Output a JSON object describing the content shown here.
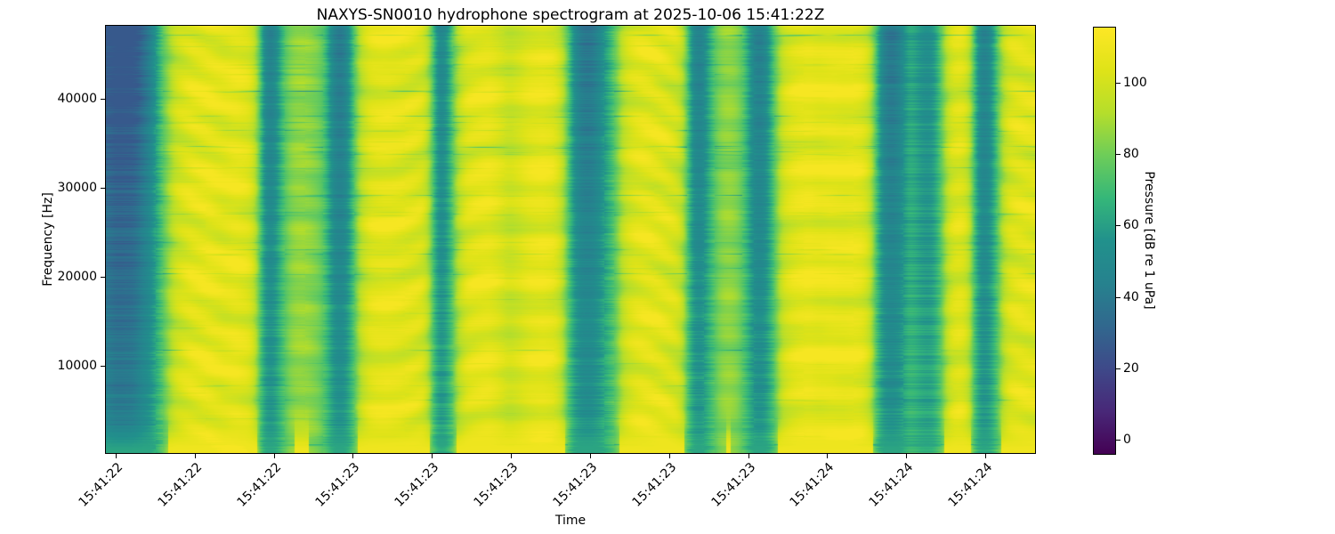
{
  "figure": {
    "title": "NAXYS-SN0010 hydrophone spectrogram at 2025-10-06 15:41:22Z",
    "background_color": "#ffffff"
  },
  "axes": {
    "xlabel": "Time",
    "ylabel": "Frequency [Hz]",
    "x_tick_labels": [
      "15:41:22",
      "15:41:22",
      "15:41:22",
      "15:41:23",
      "15:41:23",
      "15:41:23",
      "15:41:23",
      "15:41:23",
      "15:41:23",
      "15:41:24",
      "15:41:24",
      "15:41:24"
    ],
    "y_tick_labels": [
      "10000",
      "20000",
      "30000",
      "40000"
    ]
  },
  "colorbar": {
    "label": "Pressure [dB re 1 uPa]",
    "tick_values": [
      0,
      20,
      40,
      60,
      80,
      100
    ],
    "tick_labels": [
      "0",
      "20",
      "40",
      "60",
      "80",
      "100"
    ],
    "vmin": -4,
    "vmax": 115.5,
    "colormap": "viridis",
    "stops": [
      [
        0,
        "#440154"
      ],
      [
        0.1,
        "#482878"
      ],
      [
        0.2,
        "#3e4989"
      ],
      [
        0.3,
        "#31688e"
      ],
      [
        0.4,
        "#26828e"
      ],
      [
        0.5,
        "#21918c"
      ],
      [
        0.6,
        "#35b779"
      ],
      [
        0.7,
        "#6dcd59"
      ],
      [
        0.8,
        "#b5de2b"
      ],
      [
        0.9,
        "#dfe318"
      ],
      [
        1,
        "#fde725"
      ]
    ]
  },
  "chart_data": {
    "type": "heatmap",
    "subtype": "spectrogram",
    "title": "NAXYS-SN0010 hydrophone spectrogram at 2025-10-06 15:41:22Z",
    "xlabel": "Time",
    "ylabel": "Frequency [Hz]",
    "x_tick_labels": [
      "15:41:22",
      "15:41:22",
      "15:41:22",
      "15:41:23",
      "15:41:23",
      "15:41:23",
      "15:41:23",
      "15:41:23",
      "15:41:23",
      "15:41:24",
      "15:41:24",
      "15:41:24"
    ],
    "y_ticks_hz": [
      10000,
      20000,
      30000,
      40000
    ],
    "ylim_hz": [
      200,
      48200
    ],
    "colormap": "viridis",
    "value_label": "Pressure [dB re 1 uPa]",
    "value_range_db": [
      -4,
      115.5
    ],
    "colorbar_ticks_db": [
      0,
      20,
      40,
      60,
      80,
      100
    ],
    "grid": false,
    "legend": false,
    "background_level_db": 105,
    "quiet_band_level_db": 45,
    "time_envelope_db": [
      [
        0.0,
        34
      ],
      [
        0.01,
        28
      ],
      [
        0.03,
        30
      ],
      [
        0.048,
        48
      ],
      [
        0.062,
        78
      ],
      [
        0.075,
        98
      ],
      [
        0.09,
        105
      ],
      [
        0.11,
        107
      ],
      [
        0.125,
        105
      ],
      [
        0.14,
        107
      ],
      [
        0.155,
        103
      ],
      [
        0.163,
        88
      ],
      [
        0.169,
        58
      ],
      [
        0.175,
        47
      ],
      [
        0.182,
        52
      ],
      [
        0.19,
        72
      ],
      [
        0.2,
        85
      ],
      [
        0.212,
        87
      ],
      [
        0.222,
        84
      ],
      [
        0.23,
        80
      ],
      [
        0.237,
        70
      ],
      [
        0.243,
        52
      ],
      [
        0.25,
        44
      ],
      [
        0.258,
        48
      ],
      [
        0.265,
        68
      ],
      [
        0.273,
        92
      ],
      [
        0.285,
        104
      ],
      [
        0.3,
        106
      ],
      [
        0.315,
        105
      ],
      [
        0.33,
        104
      ],
      [
        0.342,
        102
      ],
      [
        0.35,
        84
      ],
      [
        0.356,
        55
      ],
      [
        0.362,
        50
      ],
      [
        0.369,
        62
      ],
      [
        0.377,
        88
      ],
      [
        0.388,
        103
      ],
      [
        0.4,
        106
      ],
      [
        0.412,
        107
      ],
      [
        0.424,
        102
      ],
      [
        0.434,
        97
      ],
      [
        0.444,
        100
      ],
      [
        0.456,
        105
      ],
      [
        0.47,
        107
      ],
      [
        0.484,
        104
      ],
      [
        0.494,
        88
      ],
      [
        0.503,
        56
      ],
      [
        0.512,
        44
      ],
      [
        0.522,
        43
      ],
      [
        0.53,
        50
      ],
      [
        0.539,
        62
      ],
      [
        0.548,
        76
      ],
      [
        0.557,
        95
      ],
      [
        0.568,
        103
      ],
      [
        0.58,
        106
      ],
      [
        0.594,
        105
      ],
      [
        0.607,
        103
      ],
      [
        0.617,
        99
      ],
      [
        0.624,
        85
      ],
      [
        0.63,
        58
      ],
      [
        0.637,
        47
      ],
      [
        0.644,
        52
      ],
      [
        0.652,
        70
      ],
      [
        0.662,
        84
      ],
      [
        0.672,
        86
      ],
      [
        0.681,
        82
      ],
      [
        0.689,
        70
      ],
      [
        0.696,
        52
      ],
      [
        0.703,
        46
      ],
      [
        0.711,
        52
      ],
      [
        0.719,
        74
      ],
      [
        0.729,
        98
      ],
      [
        0.741,
        105
      ],
      [
        0.755,
        108
      ],
      [
        0.768,
        106
      ],
      [
        0.781,
        107
      ],
      [
        0.794,
        106
      ],
      [
        0.807,
        107
      ],
      [
        0.818,
        103
      ],
      [
        0.826,
        88
      ],
      [
        0.833,
        58
      ],
      [
        0.84,
        45
      ],
      [
        0.849,
        44
      ],
      [
        0.857,
        52
      ],
      [
        0.865,
        66
      ],
      [
        0.872,
        62
      ],
      [
        0.879,
        57
      ],
      [
        0.886,
        55
      ],
      [
        0.893,
        60
      ],
      [
        0.9,
        78
      ],
      [
        0.908,
        98
      ],
      [
        0.916,
        104
      ],
      [
        0.924,
        103
      ],
      [
        0.931,
        92
      ],
      [
        0.937,
        62
      ],
      [
        0.943,
        47
      ],
      [
        0.95,
        50
      ],
      [
        0.957,
        64
      ],
      [
        0.964,
        88
      ],
      [
        0.973,
        102
      ],
      [
        0.985,
        105
      ],
      [
        1.0,
        104
      ]
    ],
    "texture": {
      "blob_amp_db": 5.0,
      "blob_y_cycles": 11.3,
      "blob2_amp_db": 3.2,
      "ripple_amp_db": 1.5,
      "line_row_density": 0.12,
      "line_depth_bright_db": 33,
      "line_depth_dark_db": 10,
      "micro_stripe_dark_db": 5,
      "micro_stripe_bright_db": 1.6,
      "dark_tilt_db": 22,
      "bottom_bright_db": 110,
      "bottom_dark_db": 62
    }
  }
}
